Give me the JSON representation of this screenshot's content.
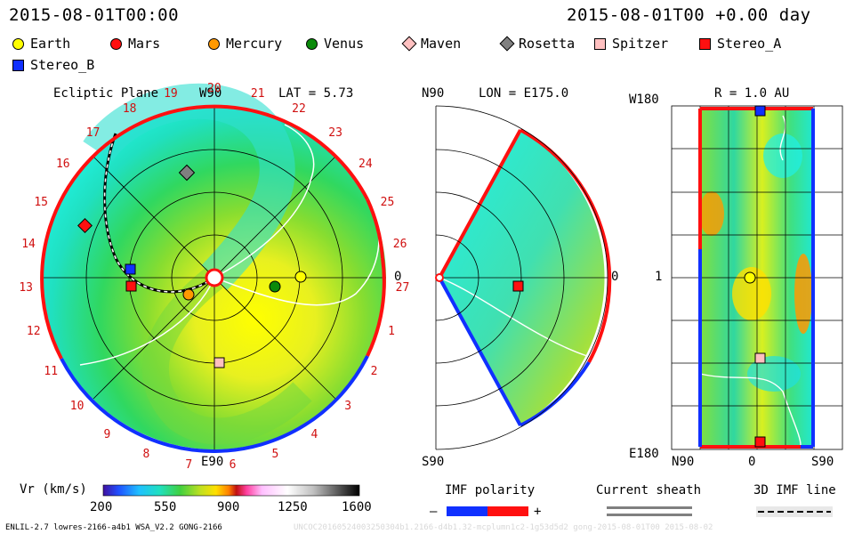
{
  "header": {
    "left_time": "2015-08-01T00:00",
    "right_time": "2015-08-01T00 +0.00 day"
  },
  "legend": [
    {
      "name": "Earth",
      "shape": "circle",
      "color": "#ffff00"
    },
    {
      "name": "Mars",
      "shape": "circle",
      "color": "#ff1010"
    },
    {
      "name": "Mercury",
      "shape": "circle",
      "color": "#ff9900"
    },
    {
      "name": "Venus",
      "shape": "circle",
      "color": "#0a8a0a"
    },
    {
      "name": "Maven",
      "shape": "diamond",
      "color": "#ffc0c0"
    },
    {
      "name": "Rosetta",
      "shape": "diamond",
      "color": "#808080"
    },
    {
      "name": "Spitzer",
      "shape": "square",
      "color": "#ffc0c0"
    },
    {
      "name": "Stereo_A",
      "shape": "square",
      "color": "#ff1010"
    },
    {
      "name": "Stereo_B",
      "shape": "square",
      "color": "#1030ff"
    }
  ],
  "panels": {
    "ecliptic": {
      "title": "Ecliptic Plane",
      "top_label": "W90",
      "bottom_label": "E90",
      "right_label": "0",
      "lat_label": "LAT = 5.73",
      "carrington_ticks": [
        "20",
        "21",
        "22",
        "23",
        "24",
        "25",
        "26",
        "27",
        "1",
        "2",
        "3",
        "4",
        "5",
        "6",
        "7",
        "8",
        "9",
        "10",
        "11",
        "12",
        "13",
        "14",
        "15",
        "16",
        "17",
        "18",
        "19"
      ]
    },
    "meridional": {
      "top_label": "N90",
      "bottom_label": "S90",
      "right_label": "0",
      "lon_label": "LON = E175.0"
    },
    "radial": {
      "title": "R = 1.0 AU",
      "top_left": "W180",
      "mid_left": "1",
      "bottom_left": "E180",
      "x_labels": [
        "N90",
        "0",
        "S90"
      ]
    }
  },
  "colorbar": {
    "label": "Vr (km/s)",
    "ticks": [
      "200",
      "550",
      "900",
      "1250",
      "1600"
    ]
  },
  "imf_polarity": {
    "label": "IMF polarity",
    "minus": "–",
    "plus": "+"
  },
  "current_sheath": {
    "label": "Current sheath"
  },
  "imf_line": {
    "label": "3D IMF line"
  },
  "footer": {
    "left": "ENLIL-2.7 lowres-2166-a4b1 WSA_V2.2 GONG-2166",
    "right": "UNCOC20160524003250304b1.2166-d4b1.32-mcplumn1c2-1g53d5d2 gong-2015-08-01T00 2015-08-02"
  }
}
